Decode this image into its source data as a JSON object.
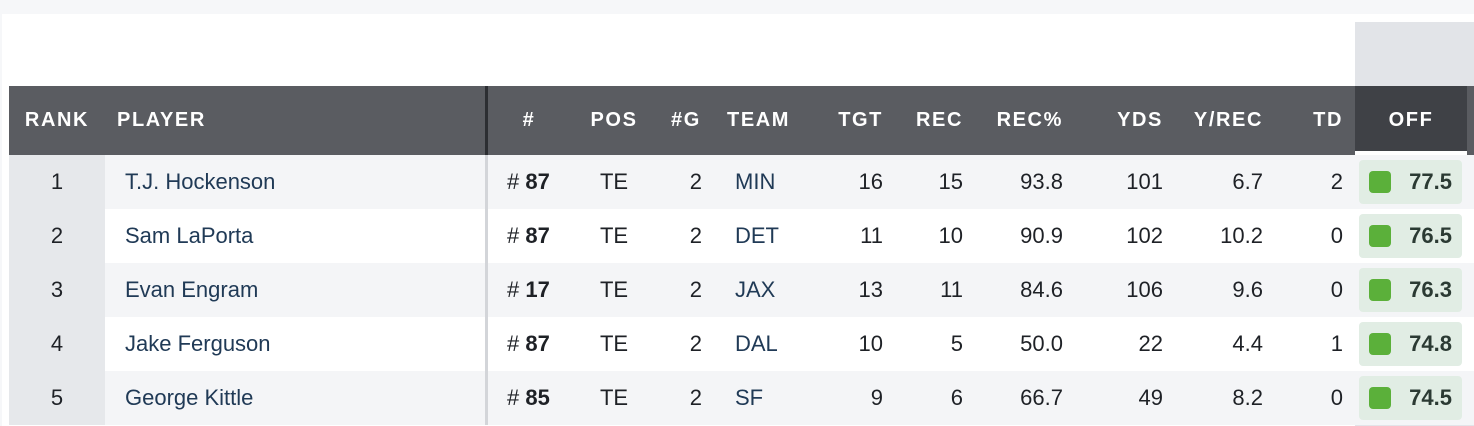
{
  "columns": {
    "rank": "RANK",
    "player": "PLAYER",
    "number": "#",
    "pos": "POS",
    "games": "#G",
    "team": "TEAM",
    "tgt": "TGT",
    "rec": "REC",
    "rec_pct": "REC%",
    "yds": "YDS",
    "y_rec": "Y/REC",
    "td": "TD",
    "off": "OFF"
  },
  "colors": {
    "header_bg": "#5a5c61",
    "active_header_bg": "#3f4146",
    "grade_green": "#5bb03a",
    "grade_bg": "#e1ede4",
    "link_text": "#203a56"
  },
  "rows": [
    {
      "rank": "1",
      "player": "T.J. Hockenson",
      "num_prefix": "#",
      "number": "87",
      "pos": "TE",
      "games": "2",
      "team": "MIN",
      "tgt": "16",
      "rec": "15",
      "rec_pct": "93.8",
      "yds": "101",
      "y_rec": "6.7",
      "td": "2",
      "off": "77.5"
    },
    {
      "rank": "2",
      "player": "Sam LaPorta",
      "num_prefix": "#",
      "number": "87",
      "pos": "TE",
      "games": "2",
      "team": "DET",
      "tgt": "11",
      "rec": "10",
      "rec_pct": "90.9",
      "yds": "102",
      "y_rec": "10.2",
      "td": "0",
      "off": "76.5"
    },
    {
      "rank": "3",
      "player": "Evan Engram",
      "num_prefix": "#",
      "number": "17",
      "pos": "TE",
      "games": "2",
      "team": "JAX",
      "tgt": "13",
      "rec": "11",
      "rec_pct": "84.6",
      "yds": "106",
      "y_rec": "9.6",
      "td": "0",
      "off": "76.3"
    },
    {
      "rank": "4",
      "player": "Jake Ferguson",
      "num_prefix": "#",
      "number": "87",
      "pos": "TE",
      "games": "2",
      "team": "DAL",
      "tgt": "10",
      "rec": "5",
      "rec_pct": "50.0",
      "yds": "22",
      "y_rec": "4.4",
      "td": "1",
      "off": "74.8"
    },
    {
      "rank": "5",
      "player": "George Kittle",
      "num_prefix": "#",
      "number": "85",
      "pos": "TE",
      "games": "2",
      "team": "SF",
      "tgt": "9",
      "rec": "6",
      "rec_pct": "66.7",
      "yds": "49",
      "y_rec": "8.2",
      "td": "0",
      "off": "74.5"
    }
  ]
}
